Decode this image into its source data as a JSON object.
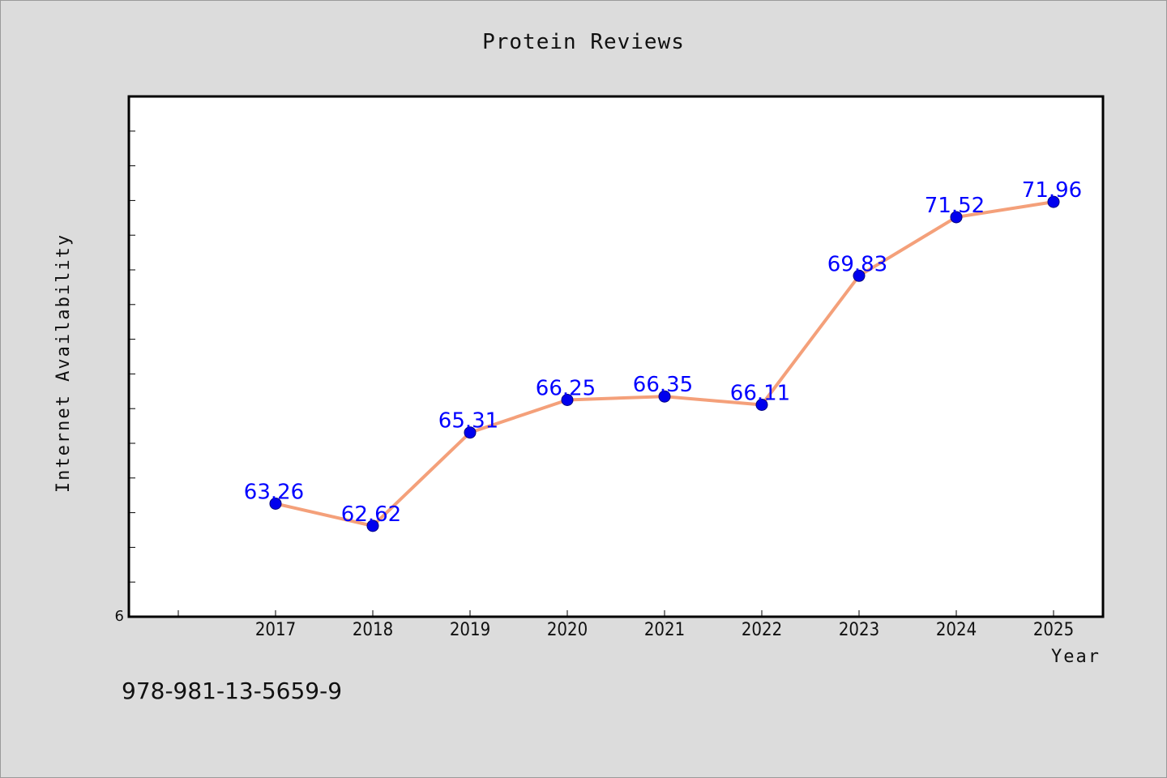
{
  "chart_data": {
    "type": "line",
    "title": "Protein Reviews",
    "xlabel": "Year",
    "ylabel": "Internet Availability",
    "categories": [
      "2017",
      "2018",
      "2019",
      "2020",
      "2021",
      "2022",
      "2023",
      "2024",
      "2025"
    ],
    "series": [
      {
        "values": [
          63.26,
          62.62,
          65.31,
          66.25,
          66.35,
          66.11,
          69.83,
          71.52,
          71.96
        ],
        "data_labels": [
          "63.26",
          "62.62",
          "65.31",
          "66.25",
          "66.35",
          "66.11",
          "69.83",
          "71.52",
          "71.96"
        ],
        "line_color": "#f4a07a",
        "marker_color": "#0000ee"
      }
    ],
    "ylim": [
      60,
      75
    ],
    "y_tick_labels": [
      "6"
    ],
    "grid": false,
    "legend": "none",
    "data_label_color": "#0000ff",
    "plot_background": "#ffffff",
    "page_background": "#dcdcdc"
  },
  "footnote": "978-981-13-5659-9"
}
